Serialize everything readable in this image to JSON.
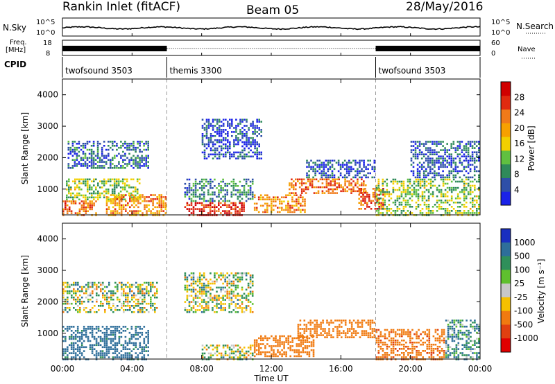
{
  "header": {
    "radar_title": "Rankin Inlet (fitACF)",
    "beam_label": "Beam 05",
    "date_label": "28/May/2016"
  },
  "noise_panel": {
    "left_label": "N.Sky",
    "left_ticks": [
      "10^5",
      "10^0"
    ],
    "right_label": "N.Search",
    "right_ticks": [
      "10^5",
      "10^0"
    ]
  },
  "freq_panel": {
    "left_label_1": "Freq.",
    "left_label_2": "[MHz]",
    "left_ticks": [
      "18",
      "8"
    ],
    "right_label": "Nave",
    "right_ticks": [
      "60",
      "0"
    ]
  },
  "cpid": {
    "label": "CPID",
    "segments": [
      {
        "name": "twofsound 3503",
        "start_hour": 0,
        "end_hour": 6
      },
      {
        "name": "themis 3300",
        "start_hour": 6,
        "end_hour": 18
      },
      {
        "name": "twofsound 3503",
        "start_hour": 18,
        "end_hour": 24
      }
    ]
  },
  "power_panel": {
    "ylabel": "Slant Range [km]",
    "yticks": [
      "1000",
      "2000",
      "3000",
      "4000"
    ],
    "colorbar_label": "Power [dB]",
    "colorbar_ticks": [
      "4",
      "8",
      "12",
      "16",
      "20",
      "24",
      "28"
    ],
    "colorbar_colors": [
      "#1a22e8",
      "#2e4fa8",
      "#2f8a5a",
      "#60c040",
      "#f2d000",
      "#f7a000",
      "#f07a1a",
      "#e02a10",
      "#d00000"
    ]
  },
  "velocity_panel": {
    "ylabel": "Slant Range [km]",
    "yticks": [
      "1000",
      "2000",
      "3000",
      "4000"
    ],
    "colorbar_label": "Velocity [m s⁻¹]",
    "colorbar_ticks": [
      "1000",
      "500",
      "100",
      "25",
      "-25",
      "-100",
      "-500",
      "-1000"
    ],
    "colorbar_colors": [
      "#1a2fc0",
      "#2e6e9a",
      "#2f8f5a",
      "#5fc02e",
      "#c8c8c8",
      "#f5c000",
      "#f07a10",
      "#e04010",
      "#e00000"
    ]
  },
  "xaxis": {
    "label": "Time UT",
    "ticks": [
      "00:00",
      "04:00",
      "08:00",
      "12:00",
      "16:00",
      "20:00",
      "00:00"
    ]
  },
  "chart_data": {
    "type": "heatmap",
    "title": "Rankin Inlet (fitACF)",
    "xlabel": "Time UT",
    "ylabel": "Slant Range [km]",
    "xlim_hours": [
      0,
      24
    ],
    "ylim_km": [
      180,
      4500
    ],
    "power_clim_db": [
      0,
      30
    ],
    "velocity_clim_ms": [
      -1000,
      1000
    ],
    "frequency_mhz": 10,
    "nave": 20,
    "power_features": [
      {
        "t0": 0.0,
        "t1": 2.0,
        "r0": 200,
        "r1": 700,
        "db": 22
      },
      {
        "t0": 0.2,
        "t1": 4.5,
        "r0": 700,
        "r1": 1400,
        "db": 12
      },
      {
        "t0": 0.3,
        "t1": 5.0,
        "r0": 1700,
        "r1": 2600,
        "db": 6
      },
      {
        "t0": 2.5,
        "t1": 6.0,
        "r0": 200,
        "r1": 900,
        "db": 20
      },
      {
        "t0": 7.0,
        "t1": 10.5,
        "r0": 200,
        "r1": 650,
        "db": 26
      },
      {
        "t0": 7.0,
        "t1": 11.0,
        "r0": 650,
        "r1": 1400,
        "db": 8
      },
      {
        "t0": 8.0,
        "t1": 11.5,
        "r0": 2000,
        "r1": 3300,
        "db": 4
      },
      {
        "t0": 11.0,
        "t1": 14.0,
        "r0": 300,
        "r1": 900,
        "db": 20
      },
      {
        "t0": 13.0,
        "t1": 17.5,
        "r0": 900,
        "r1": 1400,
        "db": 22
      },
      {
        "t0": 14.0,
        "t1": 18.0,
        "r0": 1400,
        "r1": 2000,
        "db": 5
      },
      {
        "t0": 17.0,
        "t1": 18.5,
        "r0": 400,
        "r1": 1100,
        "db": 24
      },
      {
        "t0": 18.0,
        "t1": 24.0,
        "r0": 200,
        "r1": 1400,
        "db": 12
      },
      {
        "t0": 20.0,
        "t1": 24.0,
        "r0": 1400,
        "r1": 2600,
        "db": 5
      }
    ],
    "velocity_features": [
      {
        "t0": 0.0,
        "t1": 5.5,
        "r0": 1700,
        "r1": 2700,
        "v": 0
      },
      {
        "t0": 0.0,
        "t1": 5.0,
        "r0": 200,
        "r1": 1300,
        "v": 200
      },
      {
        "t0": 7.0,
        "t1": 11.0,
        "r0": 1700,
        "r1": 3000,
        "v": 0
      },
      {
        "t0": 8.0,
        "t1": 11.0,
        "r0": 200,
        "r1": 700,
        "v": 0
      },
      {
        "t0": 11.0,
        "t1": 14.5,
        "r0": 300,
        "r1": 1000,
        "v": -300
      },
      {
        "t0": 13.5,
        "t1": 18.0,
        "r0": 900,
        "r1": 1500,
        "v": -300
      },
      {
        "t0": 18.0,
        "t1": 22.0,
        "r0": 200,
        "r1": 1200,
        "v": -400
      },
      {
        "t0": 22.0,
        "t1": 24.0,
        "r0": 200,
        "r1": 1500,
        "v": 100
      }
    ]
  }
}
